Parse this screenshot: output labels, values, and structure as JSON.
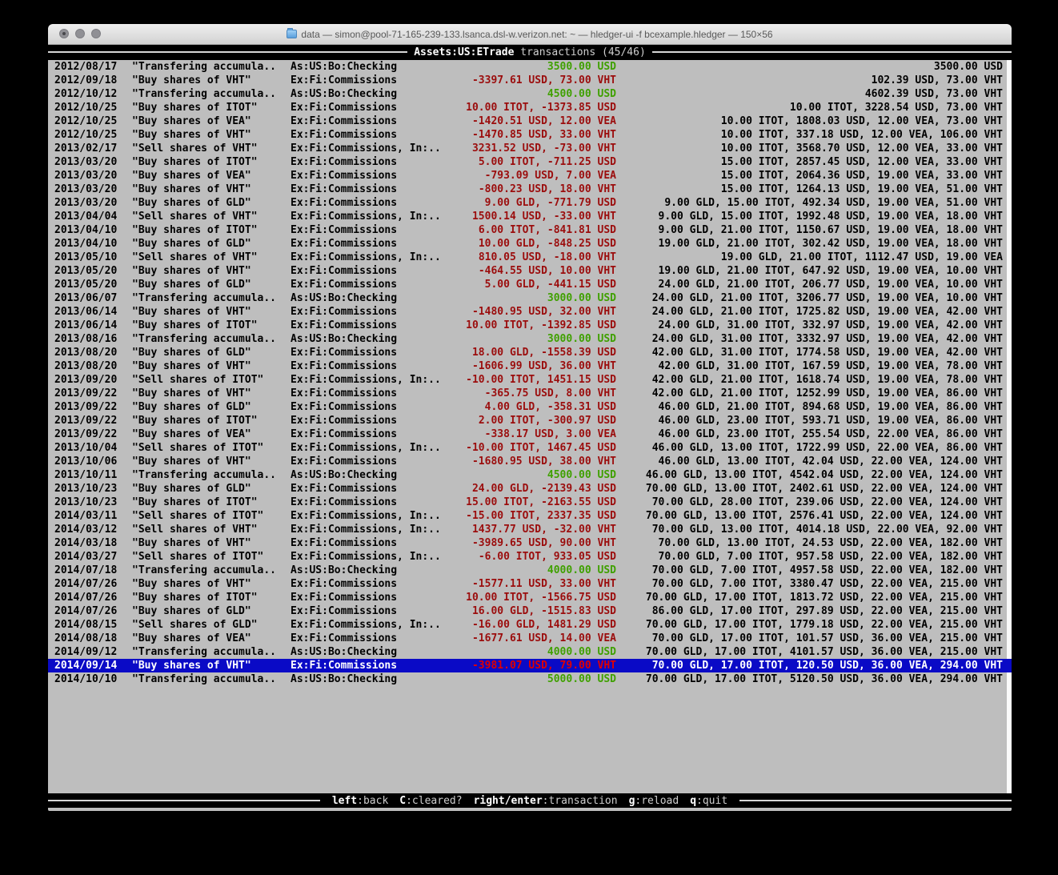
{
  "window": {
    "title": "data — simon@pool-71-165-239-133.lsanca.dsl-w.verizon.net: ~ — hledger-ui -f bcexample.hledger — 150×56",
    "traffic_lights": [
      "close",
      "minimize",
      "zoom"
    ],
    "proxy_icon": "folder-icon"
  },
  "screen_header": {
    "account": "Assets:US:ETrade",
    "mode": " transactions (45/46)"
  },
  "footer": {
    "hints": [
      {
        "key": "left",
        "label": ":back"
      },
      {
        "key": "C",
        "label": ":cleared?"
      },
      {
        "key": "right/enter",
        "label": ":transaction"
      },
      {
        "key": "g",
        "label": ":reload"
      },
      {
        "key": "q",
        "label": ":quit"
      }
    ]
  },
  "colors": {
    "terminal_bg": "#bebebe",
    "bar_bg": "#000000",
    "bar_fg": "#e8e8e8",
    "sel_bg": "#0a0ac6",
    "pos": "#3fa000",
    "neg": "#9b0d0d",
    "neg_sel": "#e00000"
  },
  "transactions": [
    {
      "date": "2012/08/17",
      "description": "\"Transfering accumula..",
      "accounts": "As:US:Bo:Checking",
      "change": "3500.00 USD",
      "change_color": "pos",
      "balance": "3500.00 USD"
    },
    {
      "date": "2012/09/18",
      "description": "\"Buy shares of VHT\"",
      "accounts": "Ex:Fi:Commissions",
      "change": "-3397.61 USD, 73.00 VHT",
      "change_color": "neg",
      "balance": "102.39 USD, 73.00 VHT"
    },
    {
      "date": "2012/10/12",
      "description": "\"Transfering accumula..",
      "accounts": "As:US:Bo:Checking",
      "change": "4500.00 USD",
      "change_color": "pos",
      "balance": "4602.39 USD, 73.00 VHT"
    },
    {
      "date": "2012/10/25",
      "description": "\"Buy shares of ITOT\"",
      "accounts": "Ex:Fi:Commissions",
      "change": "10.00 ITOT, -1373.85 USD",
      "change_color": "neg",
      "balance": "10.00 ITOT, 3228.54 USD, 73.00 VHT"
    },
    {
      "date": "2012/10/25",
      "description": "\"Buy shares of VEA\"",
      "accounts": "Ex:Fi:Commissions",
      "change": "-1420.51 USD, 12.00 VEA",
      "change_color": "neg",
      "balance": "10.00 ITOT, 1808.03 USD, 12.00 VEA, 73.00 VHT"
    },
    {
      "date": "2012/10/25",
      "description": "\"Buy shares of VHT\"",
      "accounts": "Ex:Fi:Commissions",
      "change": "-1470.85 USD, 33.00 VHT",
      "change_color": "neg",
      "balance": "10.00 ITOT, 337.18 USD, 12.00 VEA, 106.00 VHT"
    },
    {
      "date": "2013/02/17",
      "description": "\"Sell shares of VHT\"",
      "accounts": "Ex:Fi:Commissions, In:..",
      "change": "3231.52 USD, -73.00 VHT",
      "change_color": "neg",
      "balance": "10.00 ITOT, 3568.70 USD, 12.00 VEA, 33.00 VHT"
    },
    {
      "date": "2013/03/20",
      "description": "\"Buy shares of ITOT\"",
      "accounts": "Ex:Fi:Commissions",
      "change": "5.00 ITOT, -711.25 USD",
      "change_color": "neg",
      "balance": "15.00 ITOT, 2857.45 USD, 12.00 VEA, 33.00 VHT"
    },
    {
      "date": "2013/03/20",
      "description": "\"Buy shares of VEA\"",
      "accounts": "Ex:Fi:Commissions",
      "change": "-793.09 USD, 7.00 VEA",
      "change_color": "neg",
      "balance": "15.00 ITOT, 2064.36 USD, 19.00 VEA, 33.00 VHT"
    },
    {
      "date": "2013/03/20",
      "description": "\"Buy shares of VHT\"",
      "accounts": "Ex:Fi:Commissions",
      "change": "-800.23 USD, 18.00 VHT",
      "change_color": "neg",
      "balance": "15.00 ITOT, 1264.13 USD, 19.00 VEA, 51.00 VHT"
    },
    {
      "date": "2013/03/20",
      "description": "\"Buy shares of GLD\"",
      "accounts": "Ex:Fi:Commissions",
      "change": "9.00 GLD, -771.79 USD",
      "change_color": "neg",
      "balance": "9.00 GLD, 15.00 ITOT, 492.34 USD, 19.00 VEA, 51.00 VHT"
    },
    {
      "date": "2013/04/04",
      "description": "\"Sell shares of VHT\"",
      "accounts": "Ex:Fi:Commissions, In:..",
      "change": "1500.14 USD, -33.00 VHT",
      "change_color": "neg",
      "balance": "9.00 GLD, 15.00 ITOT, 1992.48 USD, 19.00 VEA, 18.00 VHT"
    },
    {
      "date": "2013/04/10",
      "description": "\"Buy shares of ITOT\"",
      "accounts": "Ex:Fi:Commissions",
      "change": "6.00 ITOT, -841.81 USD",
      "change_color": "neg",
      "balance": "9.00 GLD, 21.00 ITOT, 1150.67 USD, 19.00 VEA, 18.00 VHT"
    },
    {
      "date": "2013/04/10",
      "description": "\"Buy shares of GLD\"",
      "accounts": "Ex:Fi:Commissions",
      "change": "10.00 GLD, -848.25 USD",
      "change_color": "neg",
      "balance": "19.00 GLD, 21.00 ITOT, 302.42 USD, 19.00 VEA, 18.00 VHT"
    },
    {
      "date": "2013/05/10",
      "description": "\"Sell shares of VHT\"",
      "accounts": "Ex:Fi:Commissions, In:..",
      "change": "810.05 USD, -18.00 VHT",
      "change_color": "neg",
      "balance": "19.00 GLD, 21.00 ITOT, 1112.47 USD, 19.00 VEA"
    },
    {
      "date": "2013/05/20",
      "description": "\"Buy shares of VHT\"",
      "accounts": "Ex:Fi:Commissions",
      "change": "-464.55 USD, 10.00 VHT",
      "change_color": "neg",
      "balance": "19.00 GLD, 21.00 ITOT, 647.92 USD, 19.00 VEA, 10.00 VHT"
    },
    {
      "date": "2013/05/20",
      "description": "\"Buy shares of GLD\"",
      "accounts": "Ex:Fi:Commissions",
      "change": "5.00 GLD, -441.15 USD",
      "change_color": "neg",
      "balance": "24.00 GLD, 21.00 ITOT, 206.77 USD, 19.00 VEA, 10.00 VHT"
    },
    {
      "date": "2013/06/07",
      "description": "\"Transfering accumula..",
      "accounts": "As:US:Bo:Checking",
      "change": "3000.00 USD",
      "change_color": "pos",
      "balance": "24.00 GLD, 21.00 ITOT, 3206.77 USD, 19.00 VEA, 10.00 VHT"
    },
    {
      "date": "2013/06/14",
      "description": "\"Buy shares of VHT\"",
      "accounts": "Ex:Fi:Commissions",
      "change": "-1480.95 USD, 32.00 VHT",
      "change_color": "neg",
      "balance": "24.00 GLD, 21.00 ITOT, 1725.82 USD, 19.00 VEA, 42.00 VHT"
    },
    {
      "date": "2013/06/14",
      "description": "\"Buy shares of ITOT\"",
      "accounts": "Ex:Fi:Commissions",
      "change": "10.00 ITOT, -1392.85 USD",
      "change_color": "neg",
      "balance": "24.00 GLD, 31.00 ITOT, 332.97 USD, 19.00 VEA, 42.00 VHT"
    },
    {
      "date": "2013/08/16",
      "description": "\"Transfering accumula..",
      "accounts": "As:US:Bo:Checking",
      "change": "3000.00 USD",
      "change_color": "pos",
      "balance": "24.00 GLD, 31.00 ITOT, 3332.97 USD, 19.00 VEA, 42.00 VHT"
    },
    {
      "date": "2013/08/20",
      "description": "\"Buy shares of GLD\"",
      "accounts": "Ex:Fi:Commissions",
      "change": "18.00 GLD, -1558.39 USD",
      "change_color": "neg",
      "balance": "42.00 GLD, 31.00 ITOT, 1774.58 USD, 19.00 VEA, 42.00 VHT"
    },
    {
      "date": "2013/08/20",
      "description": "\"Buy shares of VHT\"",
      "accounts": "Ex:Fi:Commissions",
      "change": "-1606.99 USD, 36.00 VHT",
      "change_color": "neg",
      "balance": "42.00 GLD, 31.00 ITOT, 167.59 USD, 19.00 VEA, 78.00 VHT"
    },
    {
      "date": "2013/09/20",
      "description": "\"Sell shares of ITOT\"",
      "accounts": "Ex:Fi:Commissions, In:..",
      "change": "-10.00 ITOT, 1451.15 USD",
      "change_color": "neg",
      "balance": "42.00 GLD, 21.00 ITOT, 1618.74 USD, 19.00 VEA, 78.00 VHT"
    },
    {
      "date": "2013/09/22",
      "description": "\"Buy shares of VHT\"",
      "accounts": "Ex:Fi:Commissions",
      "change": "-365.75 USD, 8.00 VHT",
      "change_color": "neg",
      "balance": "42.00 GLD, 21.00 ITOT, 1252.99 USD, 19.00 VEA, 86.00 VHT"
    },
    {
      "date": "2013/09/22",
      "description": "\"Buy shares of GLD\"",
      "accounts": "Ex:Fi:Commissions",
      "change": "4.00 GLD, -358.31 USD",
      "change_color": "neg",
      "balance": "46.00 GLD, 21.00 ITOT, 894.68 USD, 19.00 VEA, 86.00 VHT"
    },
    {
      "date": "2013/09/22",
      "description": "\"Buy shares of ITOT\"",
      "accounts": "Ex:Fi:Commissions",
      "change": "2.00 ITOT, -300.97 USD",
      "change_color": "neg",
      "balance": "46.00 GLD, 23.00 ITOT, 593.71 USD, 19.00 VEA, 86.00 VHT"
    },
    {
      "date": "2013/09/22",
      "description": "\"Buy shares of VEA\"",
      "accounts": "Ex:Fi:Commissions",
      "change": "-338.17 USD, 3.00 VEA",
      "change_color": "neg",
      "balance": "46.00 GLD, 23.00 ITOT, 255.54 USD, 22.00 VEA, 86.00 VHT"
    },
    {
      "date": "2013/10/04",
      "description": "\"Sell shares of ITOT\"",
      "accounts": "Ex:Fi:Commissions, In:..",
      "change": "-10.00 ITOT, 1467.45 USD",
      "change_color": "neg",
      "balance": "46.00 GLD, 13.00 ITOT, 1722.99 USD, 22.00 VEA, 86.00 VHT"
    },
    {
      "date": "2013/10/06",
      "description": "\"Buy shares of VHT\"",
      "accounts": "Ex:Fi:Commissions",
      "change": "-1680.95 USD, 38.00 VHT",
      "change_color": "neg",
      "balance": "46.00 GLD, 13.00 ITOT, 42.04 USD, 22.00 VEA, 124.00 VHT"
    },
    {
      "date": "2013/10/11",
      "description": "\"Transfering accumula..",
      "accounts": "As:US:Bo:Checking",
      "change": "4500.00 USD",
      "change_color": "pos",
      "balance": "46.00 GLD, 13.00 ITOT, 4542.04 USD, 22.00 VEA, 124.00 VHT"
    },
    {
      "date": "2013/10/23",
      "description": "\"Buy shares of GLD\"",
      "accounts": "Ex:Fi:Commissions",
      "change": "24.00 GLD, -2139.43 USD",
      "change_color": "neg",
      "balance": "70.00 GLD, 13.00 ITOT, 2402.61 USD, 22.00 VEA, 124.00 VHT"
    },
    {
      "date": "2013/10/23",
      "description": "\"Buy shares of ITOT\"",
      "accounts": "Ex:Fi:Commissions",
      "change": "15.00 ITOT, -2163.55 USD",
      "change_color": "neg",
      "balance": "70.00 GLD, 28.00 ITOT, 239.06 USD, 22.00 VEA, 124.00 VHT"
    },
    {
      "date": "2014/03/11",
      "description": "\"Sell shares of ITOT\"",
      "accounts": "Ex:Fi:Commissions, In:..",
      "change": "-15.00 ITOT, 2337.35 USD",
      "change_color": "neg",
      "balance": "70.00 GLD, 13.00 ITOT, 2576.41 USD, 22.00 VEA, 124.00 VHT"
    },
    {
      "date": "2014/03/12",
      "description": "\"Sell shares of VHT\"",
      "accounts": "Ex:Fi:Commissions, In:..",
      "change": "1437.77 USD, -32.00 VHT",
      "change_color": "neg",
      "balance": "70.00 GLD, 13.00 ITOT, 4014.18 USD, 22.00 VEA, 92.00 VHT"
    },
    {
      "date": "2014/03/18",
      "description": "\"Buy shares of VHT\"",
      "accounts": "Ex:Fi:Commissions",
      "change": "-3989.65 USD, 90.00 VHT",
      "change_color": "neg",
      "balance": "70.00 GLD, 13.00 ITOT, 24.53 USD, 22.00 VEA, 182.00 VHT"
    },
    {
      "date": "2014/03/27",
      "description": "\"Sell shares of ITOT\"",
      "accounts": "Ex:Fi:Commissions, In:..",
      "change": "-6.00 ITOT, 933.05 USD",
      "change_color": "neg",
      "balance": "70.00 GLD, 7.00 ITOT, 957.58 USD, 22.00 VEA, 182.00 VHT"
    },
    {
      "date": "2014/07/18",
      "description": "\"Transfering accumula..",
      "accounts": "As:US:Bo:Checking",
      "change": "4000.00 USD",
      "change_color": "pos",
      "balance": "70.00 GLD, 7.00 ITOT, 4957.58 USD, 22.00 VEA, 182.00 VHT"
    },
    {
      "date": "2014/07/26",
      "description": "\"Buy shares of VHT\"",
      "accounts": "Ex:Fi:Commissions",
      "change": "-1577.11 USD, 33.00 VHT",
      "change_color": "neg",
      "balance": "70.00 GLD, 7.00 ITOT, 3380.47 USD, 22.00 VEA, 215.00 VHT"
    },
    {
      "date": "2014/07/26",
      "description": "\"Buy shares of ITOT\"",
      "accounts": "Ex:Fi:Commissions",
      "change": "10.00 ITOT, -1566.75 USD",
      "change_color": "neg",
      "balance": "70.00 GLD, 17.00 ITOT, 1813.72 USD, 22.00 VEA, 215.00 VHT"
    },
    {
      "date": "2014/07/26",
      "description": "\"Buy shares of GLD\"",
      "accounts": "Ex:Fi:Commissions",
      "change": "16.00 GLD, -1515.83 USD",
      "change_color": "neg",
      "balance": "86.00 GLD, 17.00 ITOT, 297.89 USD, 22.00 VEA, 215.00 VHT"
    },
    {
      "date": "2014/08/15",
      "description": "\"Sell shares of GLD\"",
      "accounts": "Ex:Fi:Commissions, In:..",
      "change": "-16.00 GLD, 1481.29 USD",
      "change_color": "neg",
      "balance": "70.00 GLD, 17.00 ITOT, 1779.18 USD, 22.00 VEA, 215.00 VHT"
    },
    {
      "date": "2014/08/18",
      "description": "\"Buy shares of VEA\"",
      "accounts": "Ex:Fi:Commissions",
      "change": "-1677.61 USD, 14.00 VEA",
      "change_color": "neg",
      "balance": "70.00 GLD, 17.00 ITOT, 101.57 USD, 36.00 VEA, 215.00 VHT"
    },
    {
      "date": "2014/09/12",
      "description": "\"Transfering accumula..",
      "accounts": "As:US:Bo:Checking",
      "change": "4000.00 USD",
      "change_color": "pos",
      "balance": "70.00 GLD, 17.00 ITOT, 4101.57 USD, 36.00 VEA, 215.00 VHT"
    },
    {
      "date": "2014/09/14",
      "description": "\"Buy shares of VHT\"",
      "accounts": "Ex:Fi:Commissions",
      "change": "-3981.07 USD, 79.00 VHT",
      "change_color": "neg",
      "selected": true,
      "balance": "70.00 GLD, 17.00 ITOT, 120.50 USD, 36.00 VEA, 294.00 VHT"
    },
    {
      "date": "2014/10/10",
      "description": "\"Transfering accumula..",
      "accounts": "As:US:Bo:Checking",
      "change": "5000.00 USD",
      "change_color": "pos",
      "balance": "70.00 GLD, 17.00 ITOT, 5120.50 USD, 36.00 VEA, 294.00 VHT"
    }
  ]
}
